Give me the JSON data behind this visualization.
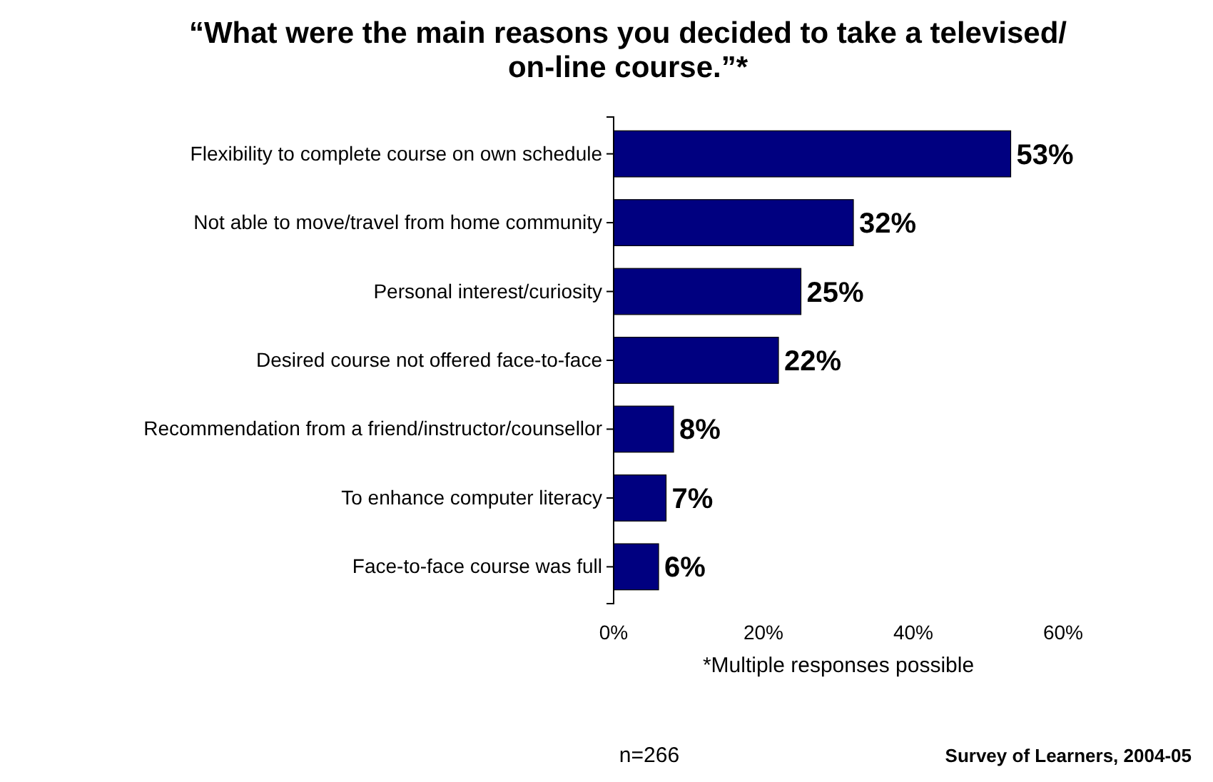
{
  "chart_data": {
    "type": "bar",
    "orientation": "horizontal",
    "title": "“What were the main reasons you decided to take a televised/ on-line course.”*",
    "categories": [
      "Flexibility to complete course on own schedule",
      "Not able to move/travel from home community",
      "Personal interest/curiosity",
      "Desired course not offered face-to-face",
      "Recommendation from a friend/instructor/counsellor",
      "To enhance computer literacy",
      "Face-to-face course was full"
    ],
    "values": [
      53,
      32,
      25,
      22,
      8,
      7,
      6
    ],
    "color": "#000080",
    "value_labels": [
      "53%",
      "32%",
      "25%",
      "22%",
      "8%",
      "7%",
      "6%"
    ],
    "xlim": [
      0,
      60
    ],
    "xticks": [
      {
        "value": 0,
        "label": "0%"
      },
      {
        "value": 20,
        "label": "20%"
      },
      {
        "value": 40,
        "label": "40%"
      },
      {
        "value": 60,
        "label": "60%"
      }
    ],
    "grid": false,
    "annotations": [
      "*Multiple responses possible",
      "n=266",
      "Survey of Learners, 2004-05"
    ]
  }
}
